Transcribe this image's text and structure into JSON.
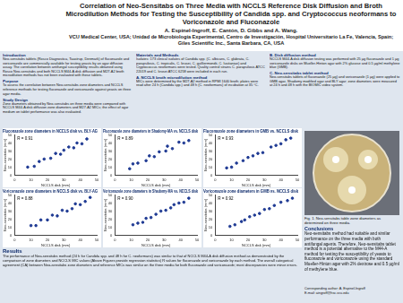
{
  "header": {
    "title": "Correlation of Neo-Sensitabs on Three Media with NCCLS Reference Disk Diffusion and Broth Microdilution Methods for Testing the Susceptibility of Candida spp. and Cryptococcus neoformans to Voriconazole and Fluconazole",
    "authors": "A. Espinel-Ingroff, E. Cantón, D. Gibbs and A. Wang.",
    "affiliation": "VCU Medical Center, USA; Unidad de Microbiología Experimental, Centro de Investigación, Hospital Universitario La Fe, Valencia, Spain; Giles Scientific Inc., Santa Barbara, CA, USA"
  },
  "columns": [
    [
      {
        "heading": "Introduction",
        "text": "Neo-sensitabs tablets (Rosco Diagnostica, Taastrup, Denmark) of fluconazole and voriconazole are commercially available for testing yeasts by an agar diffusion assay. The correlation between antifungal susceptibility results obtained using Rosco Neo-sensitabs and both NCCLS M44-A disk diffusion and M27-A2 broth microdilution methods has not been evaluated with these tablets."
      },
      {
        "heading": "Purpose",
        "text": "To assess the correlation between Neo-sensitabs zone diameters and NCCLS reference methods for testing fluconazole and voriconazole against yeasts on three agar media."
      },
      {
        "heading": "Study Design",
        "text": "Zone diameters obtained by Neo-sensitabs on three media were compared with NCCLS M44-A disk diffusion zone diameters and M27-A2 MICs; the effect of agar medium on tablet performance was also evaluated."
      }
    ],
    [
      {
        "heading": "Materials and Methods",
        "text": "Isolates: 173 clinical isolates of Candida spp. (C. albicans, C. glabrata, C. parapsilosis, C. tropicalis, C. krusei, C. guilliermondii, C. lusitaniae) and Cryptococcus neoformans were tested. Quality control strains C. parapsilosis ATCC 22019 and C. krusei ATCC 6258 were included in each run."
      },
      {
        "heading": "A. NCCLS broth microdilution method",
        "text": "MICs were determined by the M27-A2 method in RPMI 1640 broth; plates were read after 24 h (Candida spp.) and 48 h (C. neoformans) of incubation at 35 °C."
      }
    ],
    [
      {
        "heading": "B. Disk diffusion method",
        "text": "NCCLS M44-A disk diffusion testing was performed with 25 µg fluconazole and 1 µg voriconazole disks on Mueller-Hinton agar with 2% glucose and 0.5 µg/ml methylene blue (GMB)."
      },
      {
        "heading": "C. Neo-sensitabs tablet method",
        "text": "Neo-sensitabs tablets of fluconazole (25 µg) and voriconazole (1 µg) were applied to GMB agar, Shadomy modified agar and BLY agar; zone diameters were measured at 24 h and 48 h with the BIOMIC video system."
      }
    ]
  ],
  "chart_data": [
    {
      "type": "scatter",
      "title": "Fluconazole zone diameters in NCCLS disk vs. BLY-AG",
      "x_label": "NCCLS disk (mm)",
      "y_label": "Neo-sensitabs (mm)",
      "annotation": "R = 0.91",
      "color": "#1f3a93",
      "x": [
        8,
        12,
        15,
        18,
        22,
        25,
        28,
        30,
        33,
        36,
        38,
        41,
        44
      ],
      "values": [
        10,
        11,
        17,
        20,
        21,
        27,
        26,
        31,
        35,
        34,
        40,
        39,
        45
      ],
      "xlim": [
        0,
        50
      ],
      "ylim": [
        0,
        50
      ],
      "xticks": [
        0,
        10,
        20,
        30,
        40,
        50
      ],
      "yticks": [
        0,
        10,
        20,
        30,
        40,
        50
      ]
    },
    {
      "type": "scatter",
      "title": "Fluconazole zone diameters in Shadomy-MA vs. NCCLS disk",
      "x_label": "NCCLS disk (mm)",
      "y_label": "Neo-sensitabs (mm)",
      "annotation": "R = 0.89",
      "color": "#1f3a93",
      "x": [
        9,
        11,
        14,
        19,
        21,
        24,
        27,
        31,
        32,
        35,
        39,
        42,
        45
      ],
      "values": [
        8,
        14,
        15,
        18,
        24,
        23,
        29,
        30,
        36,
        33,
        41,
        40,
        43
      ],
      "xlim": [
        0,
        50
      ],
      "ylim": [
        0,
        50
      ],
      "xticks": [
        0,
        10,
        20,
        30,
        40,
        50
      ],
      "yticks": [
        0,
        10,
        20,
        30,
        40,
        50
      ]
    },
    {
      "type": "scatter",
      "title": "Fluconazole zone diameters in GMB vs. NCCLS disk",
      "x_label": "NCCLS disk (mm)",
      "y_label": "Neo-sensitabs (mm)",
      "annotation": "R = 0.93",
      "color": "#1f3a93",
      "x": [
        7,
        10,
        13,
        17,
        20,
        23,
        26,
        29,
        34,
        37,
        40,
        43,
        46
      ],
      "values": [
        9,
        10,
        15,
        18,
        22,
        24,
        27,
        28,
        35,
        37,
        39,
        44,
        46
      ],
      "xlim": [
        0,
        50
      ],
      "ylim": [
        0,
        50
      ],
      "xticks": [
        0,
        10,
        20,
        30,
        40,
        50
      ],
      "yticks": [
        0,
        10,
        20,
        30,
        40,
        50
      ]
    },
    {
      "type": "scatter",
      "title": "Voriconazole zone diameters in NCCLS disk vs. BLY-AG",
      "x_label": "NCCLS disk (mm)",
      "y_label": "Neo-sensitabs (mm)",
      "annotation": "R = 0.88",
      "color": "#1f3a93",
      "x": [
        10,
        13,
        16,
        20,
        23,
        26,
        29,
        32,
        35,
        37,
        40,
        43,
        46
      ],
      "values": [
        12,
        12,
        19,
        19,
        25,
        24,
        31,
        30,
        33,
        39,
        38,
        42,
        47
      ],
      "xlim": [
        0,
        50
      ],
      "ylim": [
        0,
        50
      ],
      "xticks": [
        0,
        10,
        20,
        30,
        40,
        50
      ],
      "yticks": [
        0,
        10,
        20,
        30,
        40,
        50
      ]
    },
    {
      "type": "scatter",
      "title": "Voriconazole zone diameters in Shadomy-MA vs. NCCLS disk",
      "x_label": "NCCLS disk (mm)",
      "y_label": "Neo-sensitabs (mm)",
      "annotation": "R = 0.90",
      "color": "#1f3a93",
      "x": [
        11,
        14,
        17,
        19,
        22,
        25,
        28,
        31,
        34,
        36,
        39,
        42,
        45
      ],
      "values": [
        13,
        15,
        16,
        21,
        22,
        26,
        30,
        31,
        34,
        38,
        40,
        41,
        46
      ],
      "xlim": [
        0,
        50
      ],
      "ylim": [
        0,
        50
      ],
      "xticks": [
        0,
        10,
        20,
        30,
        40,
        50
      ],
      "yticks": [
        0,
        10,
        20,
        30,
        40,
        50
      ]
    },
    {
      "type": "scatter",
      "title": "Voriconazole zone diameters in GMB vs. NCCLS disk",
      "x_label": "NCCLS disk (mm)",
      "y_label": "Neo-sensitabs (mm)",
      "annotation": "R = 0.92",
      "color": "#1f3a93",
      "x": [
        9,
        12,
        16,
        18,
        21,
        24,
        27,
        30,
        33,
        36,
        40,
        44,
        47
      ],
      "values": [
        11,
        13,
        17,
        19,
        23,
        25,
        27,
        32,
        33,
        37,
        41,
        43,
        46
      ],
      "xlim": [
        0,
        50
      ],
      "ylim": [
        0,
        50
      ],
      "xticks": [
        0,
        10,
        20,
        30,
        40,
        50
      ],
      "yticks": [
        0,
        10,
        20,
        30,
        40,
        50
      ]
    }
  ],
  "figure": {
    "caption": "Fig. 1. Neo-sensitabs table zone diameters as determined on three media."
  },
  "conclusions": {
    "heading": "Conclusions",
    "text": "Neo-sensitabs method had suitable and similar performance on the three media with both antifungal agents. Therefore, Neo-sensitabs tablet method is a potential alternative to the M44-A method for testing the susceptibility of yeasts to fluconazole and voriconazole using the standard Mueller-Hinton agar with 2% dextrose and 0.5 µg/ml of methylene blue."
  },
  "results": {
    "heading": "Results",
    "text": "The performance of Neo-sensitabs method (24 h for Candida spp. and 48 h for C. neoformans) was similar to that of NCCLS M44-A disk diffusion method as demonstrated by the comparison of zone diameters and NCCLS MIC values (Above Figures provide regression statistics) R values for fluconazole and voriconazole by each method. The overall categorical agreement (CA) between Neo-sensitabs zone diameters and reference MICs was similar on the three media for both fluconazole and voriconazole; most discrepancies were minor errors."
  },
  "contact": {
    "lines": [
      "Corresponding author: A. Espinel-Ingroff",
      "E-mail: aingroff@hsc.vcu.edu"
    ]
  }
}
